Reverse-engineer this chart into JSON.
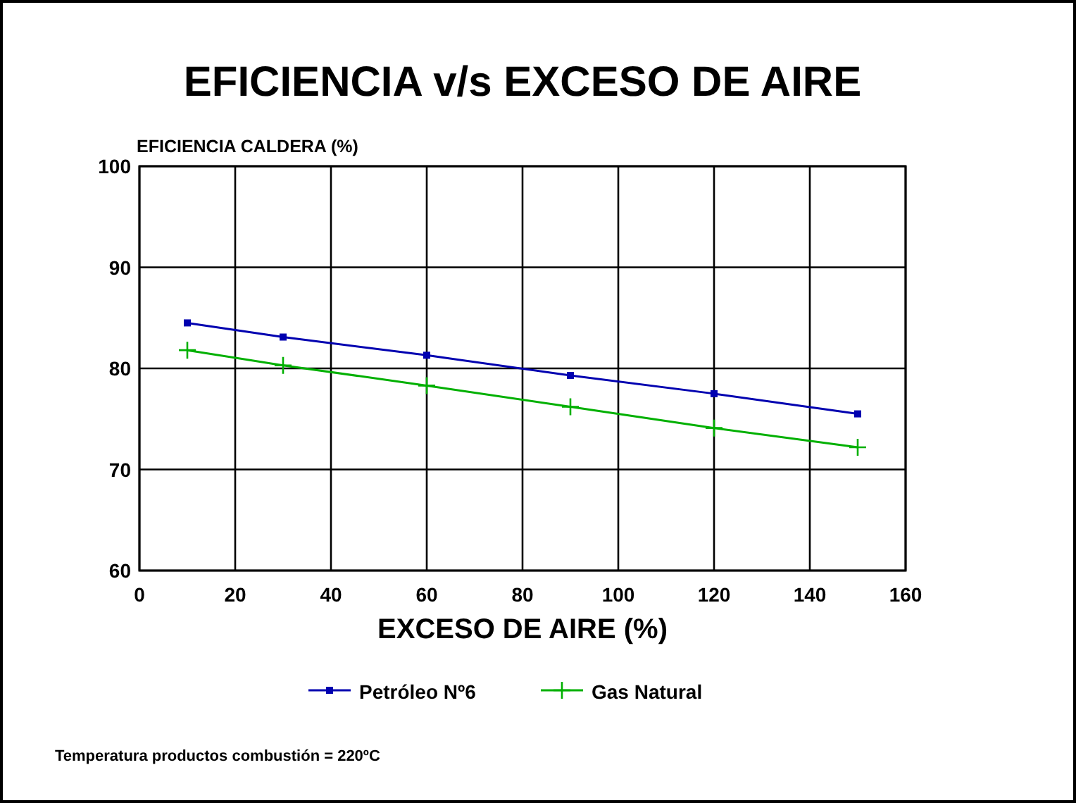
{
  "chart_data": {
    "type": "line",
    "title": "EFICIENCIA v/s EXCESO DE AIRE",
    "xlabel": "EXCESO DE AIRE (%)",
    "ylabel": "EFICIENCIA CALDERA (%)",
    "x": [
      10,
      30,
      60,
      90,
      120,
      150
    ],
    "series": [
      {
        "name": "Petróleo Nº6",
        "color": "#0000b0",
        "marker": "square",
        "values": [
          84.5,
          83.1,
          81.3,
          79.3,
          77.5,
          75.5
        ]
      },
      {
        "name": "Gas Natural",
        "color": "#00b000",
        "marker": "cross",
        "values": [
          81.8,
          80.3,
          78.3,
          76.2,
          74.1,
          72.2
        ]
      }
    ],
    "xlim": [
      0,
      160
    ],
    "xticks": [
      0,
      20,
      40,
      60,
      80,
      100,
      120,
      140,
      160
    ],
    "ylim": [
      60,
      100
    ],
    "yticks": [
      60,
      70,
      80,
      90,
      100
    ],
    "grid": true,
    "legend": "bottom",
    "annotations": [
      "Temperatura productos combustión = 220ºC"
    ]
  }
}
